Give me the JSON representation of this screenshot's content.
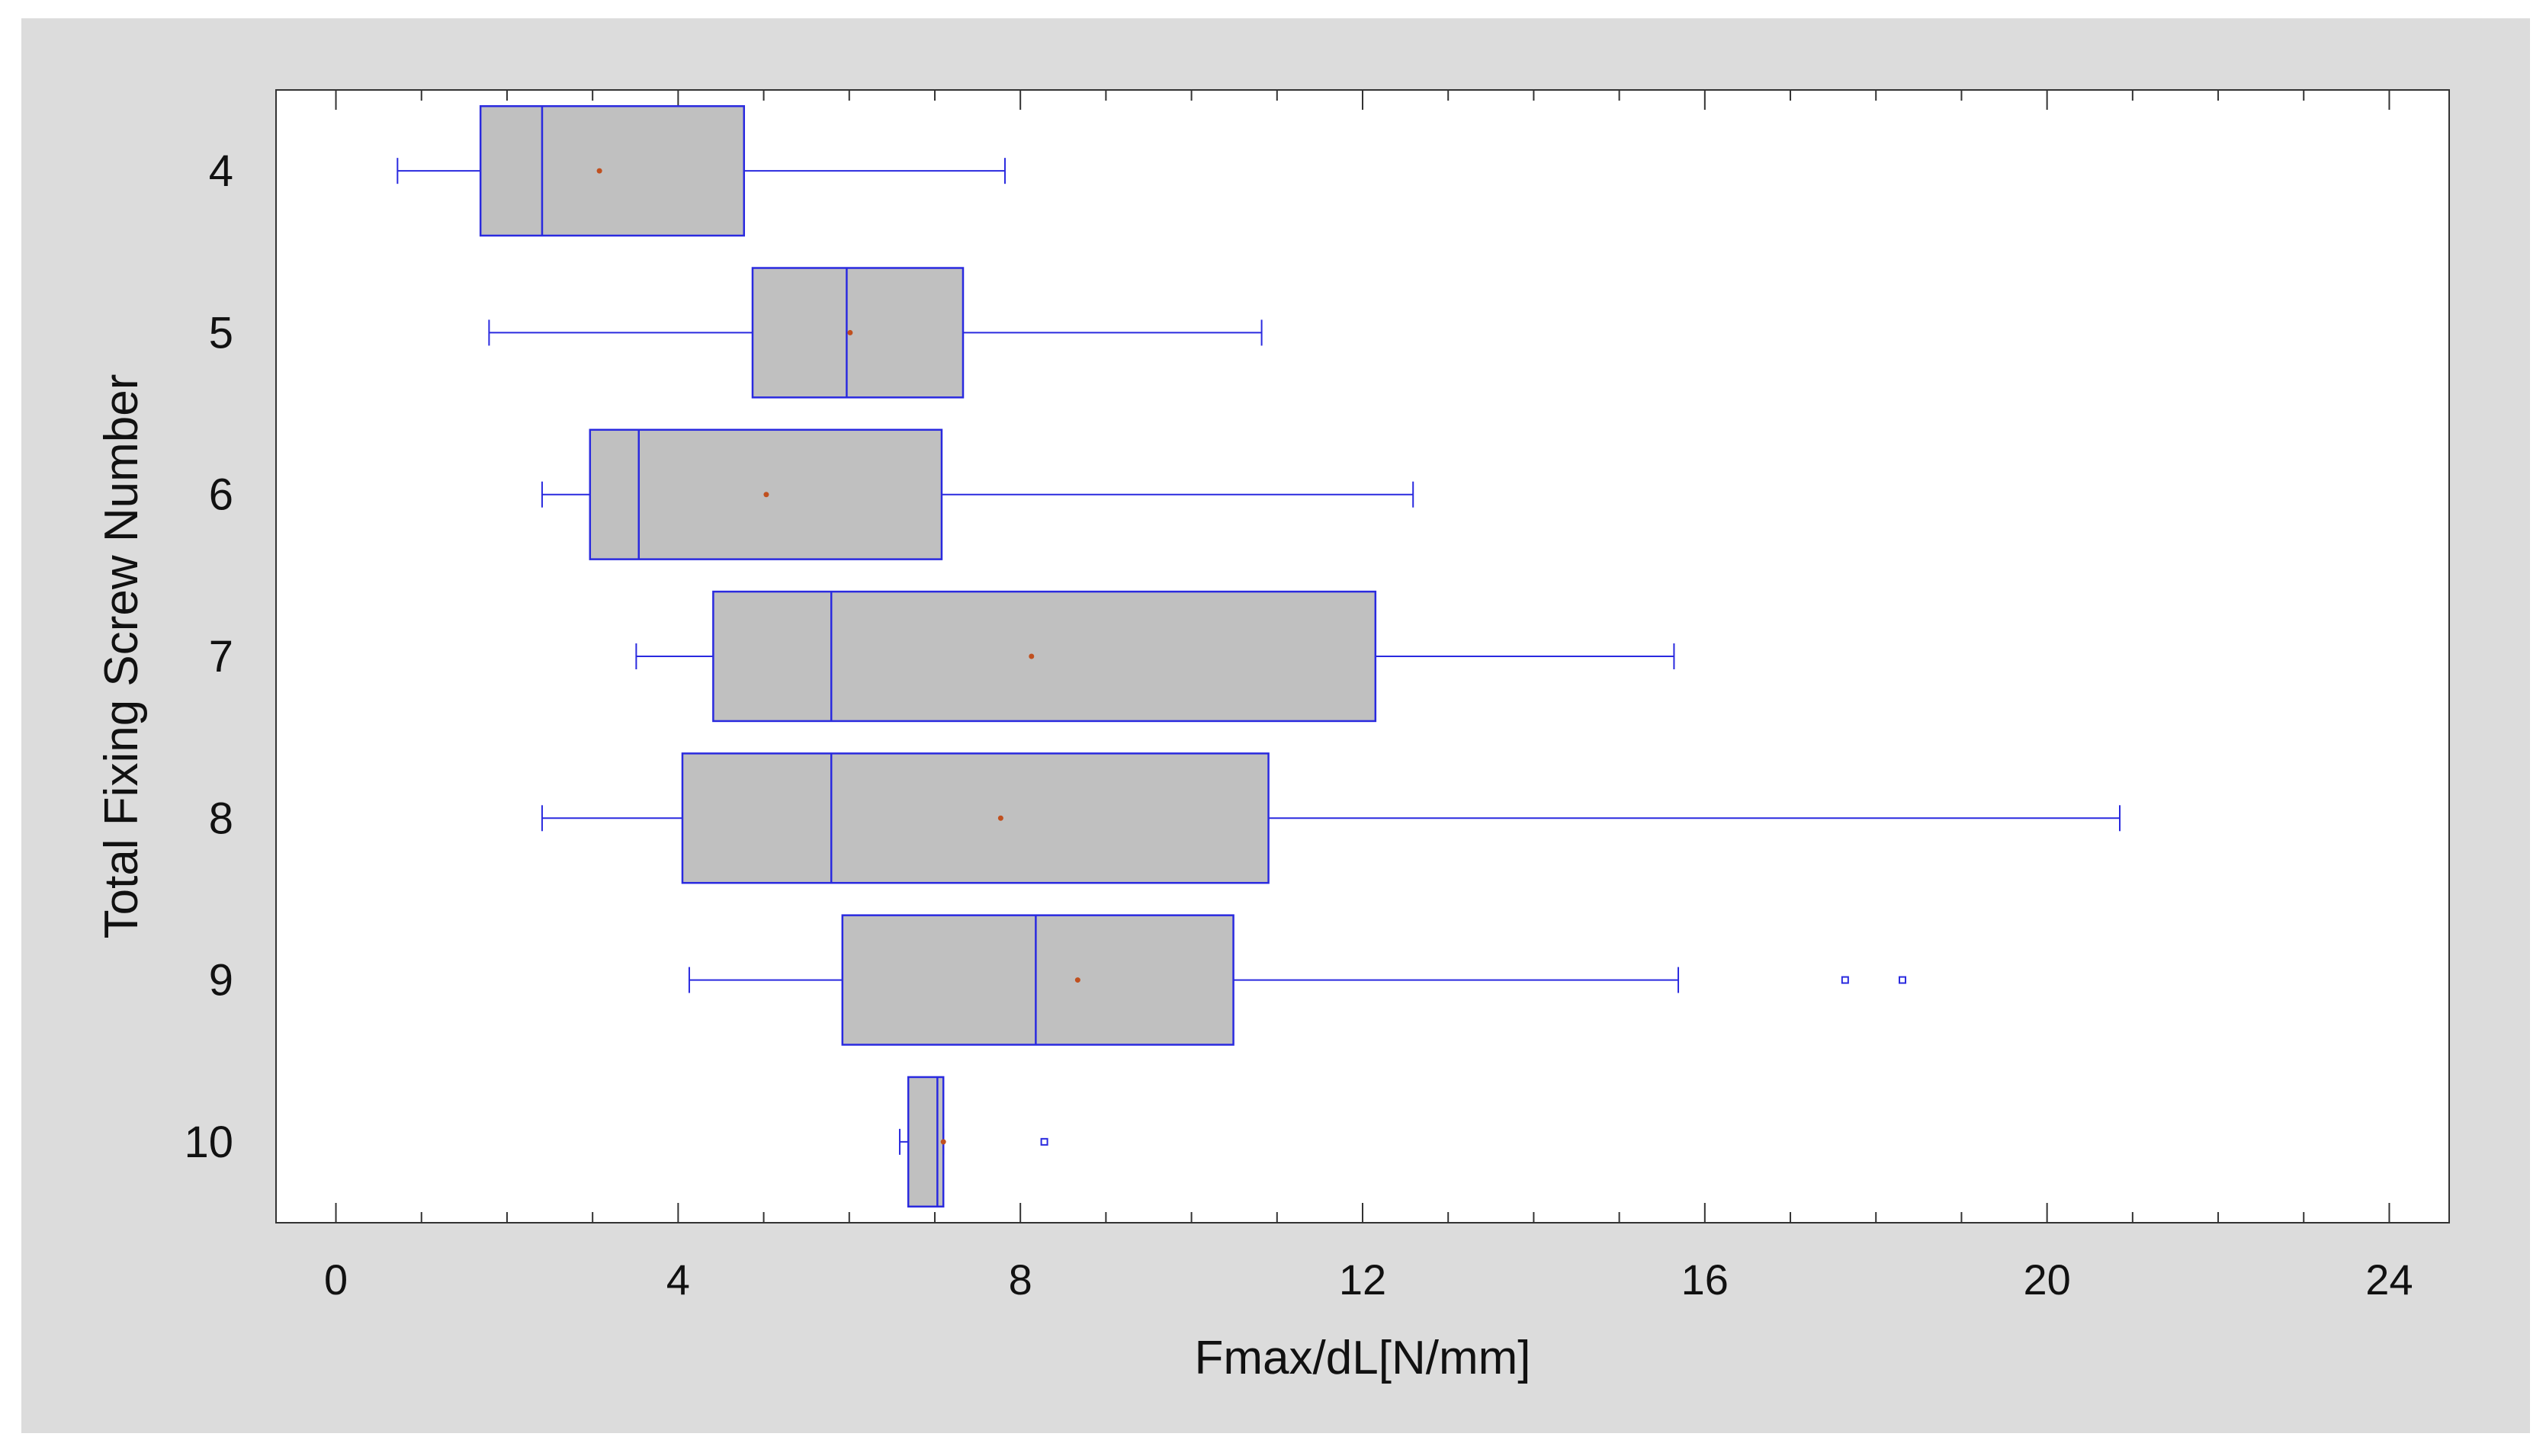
{
  "chart_data": {
    "type": "boxplot",
    "orientation": "horizontal",
    "title": "",
    "xlabel": "Fmax/dL[N/mm]",
    "ylabel": "Total Fixing Screw Number",
    "xlim": [
      -0.7,
      24.7
    ],
    "x_ticks": [
      0,
      4,
      8,
      12,
      16,
      20,
      24
    ],
    "x_tick_labels": [
      "0",
      "4",
      "8",
      "12",
      "16",
      "20",
      "24"
    ],
    "x_minor_step": 1,
    "categories": [
      "4",
      "5",
      "6",
      "7",
      "8",
      "9",
      "10"
    ],
    "boxes": [
      {
        "category": "4",
        "whisker_low": 0.72,
        "q1": 1.69,
        "median": 2.41,
        "q3": 4.77,
        "whisker_high": 7.82,
        "mean": 3.08,
        "outliers": []
      },
      {
        "category": "5",
        "whisker_low": 1.79,
        "q1": 4.87,
        "median": 5.97,
        "q3": 7.33,
        "whisker_high": 10.82,
        "mean": 6.01,
        "outliers": []
      },
      {
        "category": "6",
        "whisker_low": 2.41,
        "q1": 2.97,
        "median": 3.54,
        "q3": 7.08,
        "whisker_high": 12.59,
        "mean": 5.03,
        "outliers": []
      },
      {
        "category": "7",
        "whisker_low": 3.51,
        "q1": 4.41,
        "median": 5.79,
        "q3": 12.15,
        "whisker_high": 15.64,
        "mean": 8.13,
        "outliers": []
      },
      {
        "category": "8",
        "whisker_low": 2.41,
        "q1": 4.05,
        "median": 5.79,
        "q3": 10.9,
        "whisker_high": 20.85,
        "mean": 7.77,
        "outliers": []
      },
      {
        "category": "9",
        "whisker_low": 4.13,
        "q1": 5.92,
        "median": 8.18,
        "q3": 10.49,
        "whisker_high": 15.69,
        "mean": 8.67,
        "outliers": [
          17.64,
          18.31
        ]
      },
      {
        "category": "10",
        "whisker_low": 6.59,
        "q1": 6.69,
        "median": 7.03,
        "q3": 7.1,
        "whisker_high": 7.1,
        "mean": 7.1,
        "outliers": [
          8.28
        ]
      }
    ],
    "grid": false,
    "legend": "none",
    "colors": {
      "background": "#dcdcdc",
      "plot_background": "#ffffff",
      "axis": "#333333",
      "box_fill": "#c0c0c0",
      "box_stroke": "#2a2adf",
      "mean_marker": "#c0501f",
      "text": "#111111"
    }
  }
}
